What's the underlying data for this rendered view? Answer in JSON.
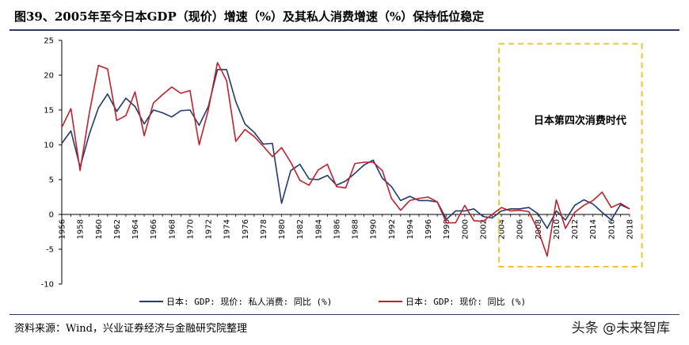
{
  "header": {
    "title": "图39、2005年至今日本GDP（现价）增速（%）及其私人消费增速（%）保持低位稳定"
  },
  "footer": {
    "source": "资料来源：Wind，兴业证券经济与金融研究院整理",
    "watermark": "头条 @未来智库"
  },
  "colors": {
    "consumption": "#1f3a70",
    "gdp": "#c0202a",
    "highlight_box": "#f2c12e",
    "rule": "#2b3a67"
  },
  "chart_data": {
    "type": "line",
    "title": "",
    "xlabel": "",
    "ylabel": "",
    "ylim": [
      -10,
      25
    ],
    "yticks": [
      -10,
      -5,
      0,
      5,
      10,
      15,
      20,
      25
    ],
    "xlim": [
      1956,
      2018
    ],
    "xticks": [
      1956,
      1958,
      1960,
      1962,
      1964,
      1966,
      1968,
      1970,
      1972,
      1974,
      1976,
      1978,
      1980,
      1982,
      1984,
      1986,
      1988,
      1990,
      1992,
      1994,
      1996,
      1998,
      2000,
      2002,
      2004,
      2006,
      2008,
      2010,
      2012,
      2014,
      2016,
      2018
    ],
    "x": [
      1956,
      1957,
      1958,
      1959,
      1960,
      1961,
      1962,
      1963,
      1964,
      1965,
      1966,
      1967,
      1968,
      1969,
      1970,
      1971,
      1972,
      1973,
      1974,
      1975,
      1976,
      1977,
      1978,
      1979,
      1980,
      1981,
      1982,
      1983,
      1984,
      1985,
      1986,
      1987,
      1988,
      1989,
      1990,
      1991,
      1992,
      1993,
      1994,
      1995,
      1996,
      1997,
      1998,
      1999,
      2000,
      2001,
      2002,
      2003,
      2004,
      2005,
      2006,
      2007,
      2008,
      2009,
      2010,
      2011,
      2012,
      2013,
      2014,
      2015,
      2016,
      2017,
      2018
    ],
    "series": [
      {
        "name": "日本: GDP: 现价: 私人消费: 同比 (%)",
        "values": [
          10.2,
          12.0,
          6.8,
          11.5,
          15.3,
          17.3,
          14.8,
          16.7,
          15.5,
          13.0,
          15.0,
          14.6,
          14.0,
          14.9,
          15.0,
          12.8,
          15.5,
          20.8,
          20.8,
          16.2,
          13.0,
          11.8,
          10.1,
          10.2,
          1.6,
          6.3,
          7.2,
          5.1,
          5.0,
          5.6,
          4.2,
          4.8,
          5.9,
          7.1,
          7.8,
          5.2,
          4.0,
          2.0,
          2.6,
          2.0,
          2.0,
          1.8,
          -0.7,
          0.5,
          0.5,
          0.8,
          -0.3,
          -0.5,
          0.5,
          0.8,
          0.8,
          1.0,
          0.1,
          -2.0,
          0.5,
          -0.8,
          1.3,
          2.1,
          1.5,
          0.3,
          -0.8,
          1.4,
          0.8
        ]
      },
      {
        "name": "日本: GDP: 现价: 同比 (%)",
        "values": [
          12.5,
          15.2,
          6.3,
          14.5,
          21.4,
          20.9,
          13.5,
          14.2,
          17.6,
          11.3,
          16.0,
          17.2,
          18.3,
          17.4,
          17.8,
          10.0,
          15.0,
          21.8,
          19.2,
          10.5,
          12.2,
          11.2,
          9.8,
          8.3,
          9.6,
          7.5,
          4.9,
          4.2,
          6.4,
          7.2,
          4.0,
          3.8,
          7.3,
          7.5,
          7.5,
          6.3,
          2.3,
          0.6,
          2.0,
          2.3,
          2.5,
          1.8,
          -1.2,
          -1.2,
          1.3,
          -0.9,
          -1.0,
          0.0,
          1.0,
          0.5,
          0.6,
          0.4,
          -2.2,
          -6.0,
          2.1,
          -2.0,
          0.3,
          1.3,
          2.0,
          3.2,
          1.0,
          1.6,
          0.8
        ]
      }
    ],
    "legend": {
      "position": "bottom-center",
      "entries": [
        "日本: GDP: 现价: 私人消费: 同比 (%)",
        "日本: GDP: 现价: 同比 (%)"
      ]
    },
    "annotation": {
      "text": "日本第四次消费时代",
      "x_range": [
        2004,
        2019
      ],
      "y_range": [
        -7.5,
        24.5
      ]
    },
    "grid": false
  }
}
